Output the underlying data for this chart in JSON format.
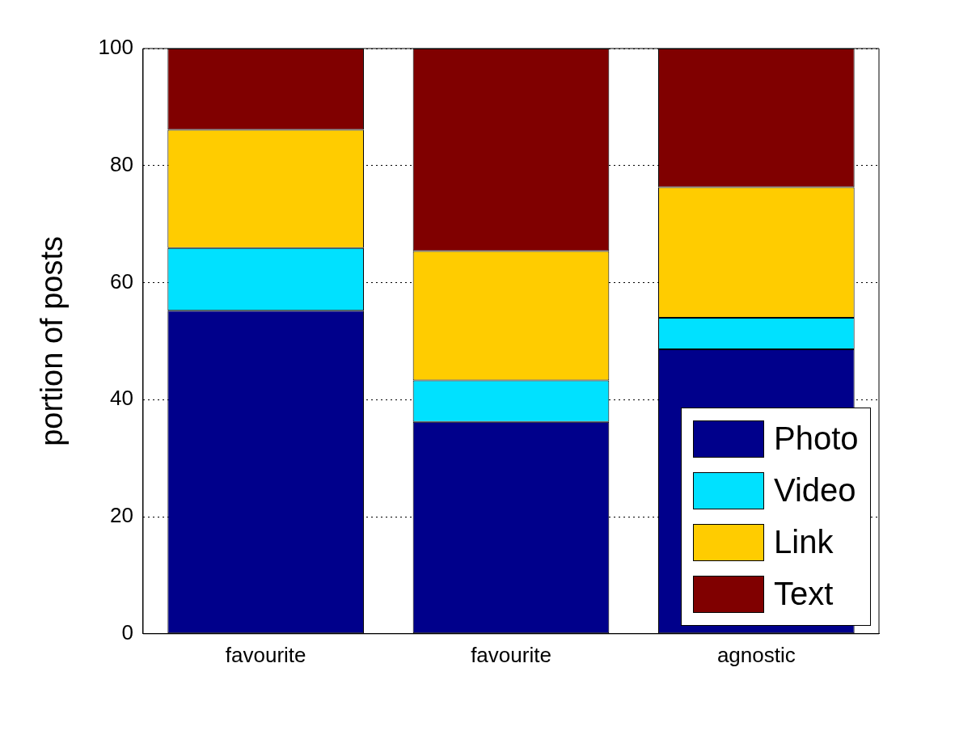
{
  "chart_data": {
    "type": "bar",
    "stacked": true,
    "ylabel": "portion of posts",
    "categories": [
      "favourite",
      "favourite",
      "agnostic"
    ],
    "series": [
      {
        "name": "Photo",
        "color": "#00008b",
        "values": [
          55.2,
          36.2,
          48.6
        ]
      },
      {
        "name": "Video",
        "color": "#00e1ff",
        "values": [
          10.7,
          7.1,
          5.4
        ]
      },
      {
        "name": "Link",
        "color": "#ffcc00",
        "values": [
          20.2,
          22.1,
          22.3
        ]
      },
      {
        "name": "Text",
        "color": "#800000",
        "values": [
          13.9,
          34.6,
          23.7
        ]
      }
    ],
    "ylim": [
      0,
      100
    ],
    "yticks": [
      0,
      20,
      40,
      60,
      80,
      100
    ],
    "grid": "y",
    "legend": "bottom right"
  }
}
